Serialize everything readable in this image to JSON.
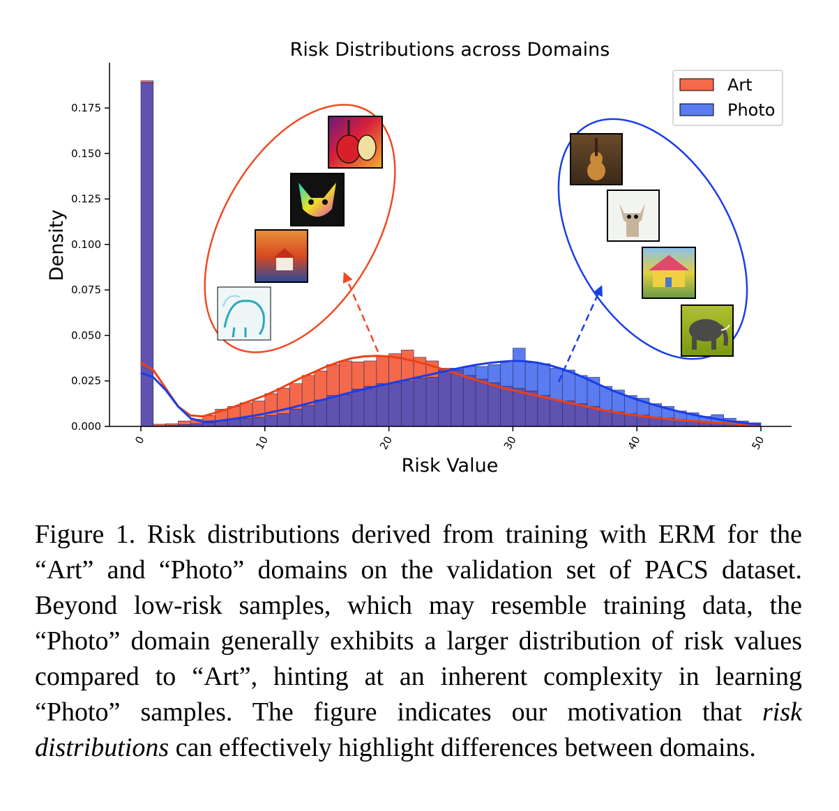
{
  "chart_data": {
    "type": "bar",
    "title": "Risk Distributions across Domains",
    "xlabel": "Risk Value",
    "ylabel": "Density",
    "xlim": [
      0,
      50
    ],
    "ylim": [
      0,
      0.19
    ],
    "x_ticks": [
      0,
      10,
      20,
      30,
      40,
      50
    ],
    "x_tick_labels": [
      "0",
      "10",
      "20",
      "30",
      "40",
      "50"
    ],
    "y_ticks": [
      0.0,
      0.025,
      0.05,
      0.075,
      0.1,
      0.125,
      0.15,
      0.175
    ],
    "y_tick_labels": [
      "0.000",
      "0.025",
      "0.050",
      "0.075",
      "0.100",
      "0.125",
      "0.150",
      "0.175"
    ],
    "bin_width": 1,
    "bin_starts": [
      0,
      1,
      2,
      3,
      4,
      5,
      6,
      7,
      8,
      9,
      10,
      11,
      12,
      13,
      14,
      15,
      16,
      17,
      18,
      19,
      20,
      21,
      22,
      23,
      24,
      25,
      26,
      27,
      28,
      29,
      30,
      31,
      32,
      33,
      34,
      35,
      36,
      37,
      38,
      39,
      40,
      41,
      42,
      43,
      44,
      45,
      46,
      47,
      48,
      49
    ],
    "legend_position": "top-right",
    "series": [
      {
        "name": "Art",
        "color": "#f4694a",
        "values": [
          0.19,
          0.0012,
          0.0015,
          0.003,
          0.004,
          0.006,
          0.0095,
          0.011,
          0.013,
          0.014,
          0.018,
          0.021,
          0.0235,
          0.028,
          0.0305,
          0.034,
          0.036,
          0.0355,
          0.036,
          0.0385,
          0.04,
          0.042,
          0.038,
          0.036,
          0.032,
          0.031,
          0.028,
          0.026,
          0.024,
          0.022,
          0.021,
          0.0195,
          0.017,
          0.0145,
          0.014,
          0.0125,
          0.011,
          0.009,
          0.008,
          0.007,
          0.0062,
          0.0052,
          0.0046,
          0.0038,
          0.0032,
          0.0025,
          0.0021,
          0.0017,
          0.0012,
          0.0009
        ],
        "kde": [
          [
            0,
            0.035
          ],
          [
            1,
            0.031
          ],
          [
            2,
            0.021
          ],
          [
            3,
            0.011
          ],
          [
            4,
            0.006
          ],
          [
            5,
            0.0055
          ],
          [
            6,
            0.0075
          ],
          [
            7,
            0.0095
          ],
          [
            8,
            0.012
          ],
          [
            9,
            0.0145
          ],
          [
            10,
            0.017
          ],
          [
            11,
            0.02
          ],
          [
            12,
            0.0235
          ],
          [
            13,
            0.027
          ],
          [
            14,
            0.03
          ],
          [
            15,
            0.033
          ],
          [
            16,
            0.0355
          ],
          [
            17,
            0.0375
          ],
          [
            18,
            0.0385
          ],
          [
            19,
            0.0388
          ],
          [
            20,
            0.0385
          ],
          [
            21,
            0.0375
          ],
          [
            22,
            0.036
          ],
          [
            23,
            0.0342
          ],
          [
            24,
            0.0322
          ],
          [
            25,
            0.03
          ],
          [
            26,
            0.0278
          ],
          [
            27,
            0.0256
          ],
          [
            28,
            0.0235
          ],
          [
            29,
            0.0215
          ],
          [
            30,
            0.0198
          ],
          [
            31,
            0.0183
          ],
          [
            32,
            0.0168
          ],
          [
            33,
            0.0153
          ],
          [
            34,
            0.0138
          ],
          [
            35,
            0.0123
          ],
          [
            36,
            0.0108
          ],
          [
            37,
            0.0094
          ],
          [
            38,
            0.0081
          ],
          [
            39,
            0.007
          ],
          [
            40,
            0.006
          ],
          [
            41,
            0.0052
          ],
          [
            42,
            0.0045
          ],
          [
            43,
            0.0038
          ],
          [
            44,
            0.0032
          ],
          [
            45,
            0.0027
          ],
          [
            46,
            0.0022
          ],
          [
            47,
            0.0018
          ],
          [
            48,
            0.0014
          ],
          [
            49,
            0.001
          ],
          [
            50,
            0.0008
          ]
        ]
      },
      {
        "name": "Photo",
        "color": "#5a7cf0",
        "values": [
          0.189,
          0.0003,
          0.0005,
          0.001,
          0.0015,
          0.002,
          0.003,
          0.004,
          0.0045,
          0.005,
          0.006,
          0.007,
          0.0095,
          0.0115,
          0.0145,
          0.017,
          0.0175,
          0.0205,
          0.022,
          0.0235,
          0.024,
          0.025,
          0.0265,
          0.027,
          0.031,
          0.032,
          0.033,
          0.033,
          0.034,
          0.035,
          0.043,
          0.035,
          0.0345,
          0.032,
          0.031,
          0.028,
          0.027,
          0.022,
          0.02,
          0.017,
          0.0155,
          0.0125,
          0.011,
          0.0085,
          0.0075,
          0.0055,
          0.0065,
          0.0045,
          0.003,
          0.002
        ],
        "kde": [
          [
            0,
            0.0295
          ],
          [
            1,
            0.027
          ],
          [
            2,
            0.02
          ],
          [
            3,
            0.011
          ],
          [
            4,
            0.0045
          ],
          [
            5,
            0.0025
          ],
          [
            6,
            0.0028
          ],
          [
            7,
            0.0037
          ],
          [
            8,
            0.0047
          ],
          [
            9,
            0.0058
          ],
          [
            10,
            0.007
          ],
          [
            11,
            0.0085
          ],
          [
            12,
            0.01
          ],
          [
            13,
            0.0118
          ],
          [
            14,
            0.0135
          ],
          [
            15,
            0.0152
          ],
          [
            16,
            0.017
          ],
          [
            17,
            0.0188
          ],
          [
            18,
            0.0205
          ],
          [
            19,
            0.022
          ],
          [
            20,
            0.0235
          ],
          [
            21,
            0.025
          ],
          [
            22,
            0.0265
          ],
          [
            23,
            0.028
          ],
          [
            24,
            0.0295
          ],
          [
            25,
            0.031
          ],
          [
            26,
            0.0325
          ],
          [
            27,
            0.0338
          ],
          [
            28,
            0.0348
          ],
          [
            29,
            0.0355
          ],
          [
            30,
            0.036
          ],
          [
            31,
            0.0358
          ],
          [
            32,
            0.035
          ],
          [
            33,
            0.0335
          ],
          [
            34,
            0.0315
          ],
          [
            35,
            0.029
          ],
          [
            36,
            0.026
          ],
          [
            37,
            0.0228
          ],
          [
            38,
            0.0198
          ],
          [
            39,
            0.0172
          ],
          [
            40,
            0.0148
          ],
          [
            41,
            0.0126
          ],
          [
            42,
            0.0106
          ],
          [
            43,
            0.0088
          ],
          [
            44,
            0.0072
          ],
          [
            45,
            0.0058
          ],
          [
            46,
            0.0045
          ],
          [
            47,
            0.0034
          ],
          [
            48,
            0.0024
          ],
          [
            49,
            0.0016
          ],
          [
            50,
            0.0011
          ]
        ]
      }
    ],
    "overlap_color": "#5f52b0"
  },
  "caption": {
    "label": "Figure 1.",
    "text_before_em": " Risk distributions derived from training with ERM for the “Art” and “Photo” domains on the validation set of PACS dataset. Beyond low-risk samples, which may resemble training data, the “Photo” domain generally exhibits a larger distribution of risk values compared to “Art”, hinting at an inherent complexity in learning “Photo” samples. The figure indicates our motivation that ",
    "em": "risk distributions",
    "text_after_em": " can effectively highlight differences between domains."
  }
}
